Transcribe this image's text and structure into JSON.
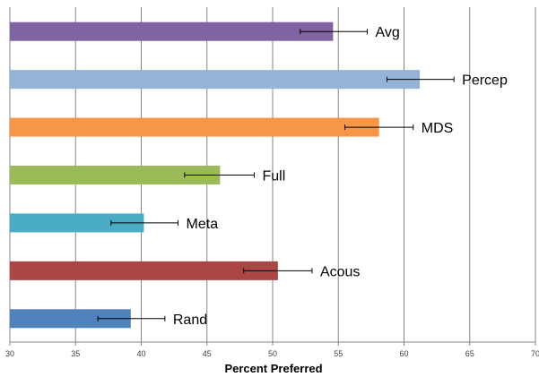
{
  "chart_data": {
    "type": "bar",
    "orientation": "horizontal",
    "title": "",
    "xlabel": "Percent Preferred",
    "ylabel": "",
    "xlim": [
      30,
      70
    ],
    "x_ticks": [
      30,
      35,
      40,
      45,
      50,
      55,
      60,
      65,
      70
    ],
    "grid": "vertical",
    "categories": [
      "Avg",
      "Percep",
      "MDS",
      "Full",
      "Meta",
      "Acous",
      "Rand"
    ],
    "values": [
      54.6,
      61.2,
      58.1,
      46.0,
      40.2,
      50.4,
      39.2
    ],
    "error_low": [
      52.1,
      58.7,
      55.5,
      43.3,
      37.7,
      47.8,
      36.7
    ],
    "error_high": [
      57.2,
      63.8,
      60.7,
      48.6,
      42.8,
      53.0,
      41.8
    ],
    "colors": [
      "#8064A2",
      "#95B3D7",
      "#F79646",
      "#9BBB59",
      "#4BACC6",
      "#AA4643",
      "#4F81BD"
    ],
    "legend": "none"
  }
}
